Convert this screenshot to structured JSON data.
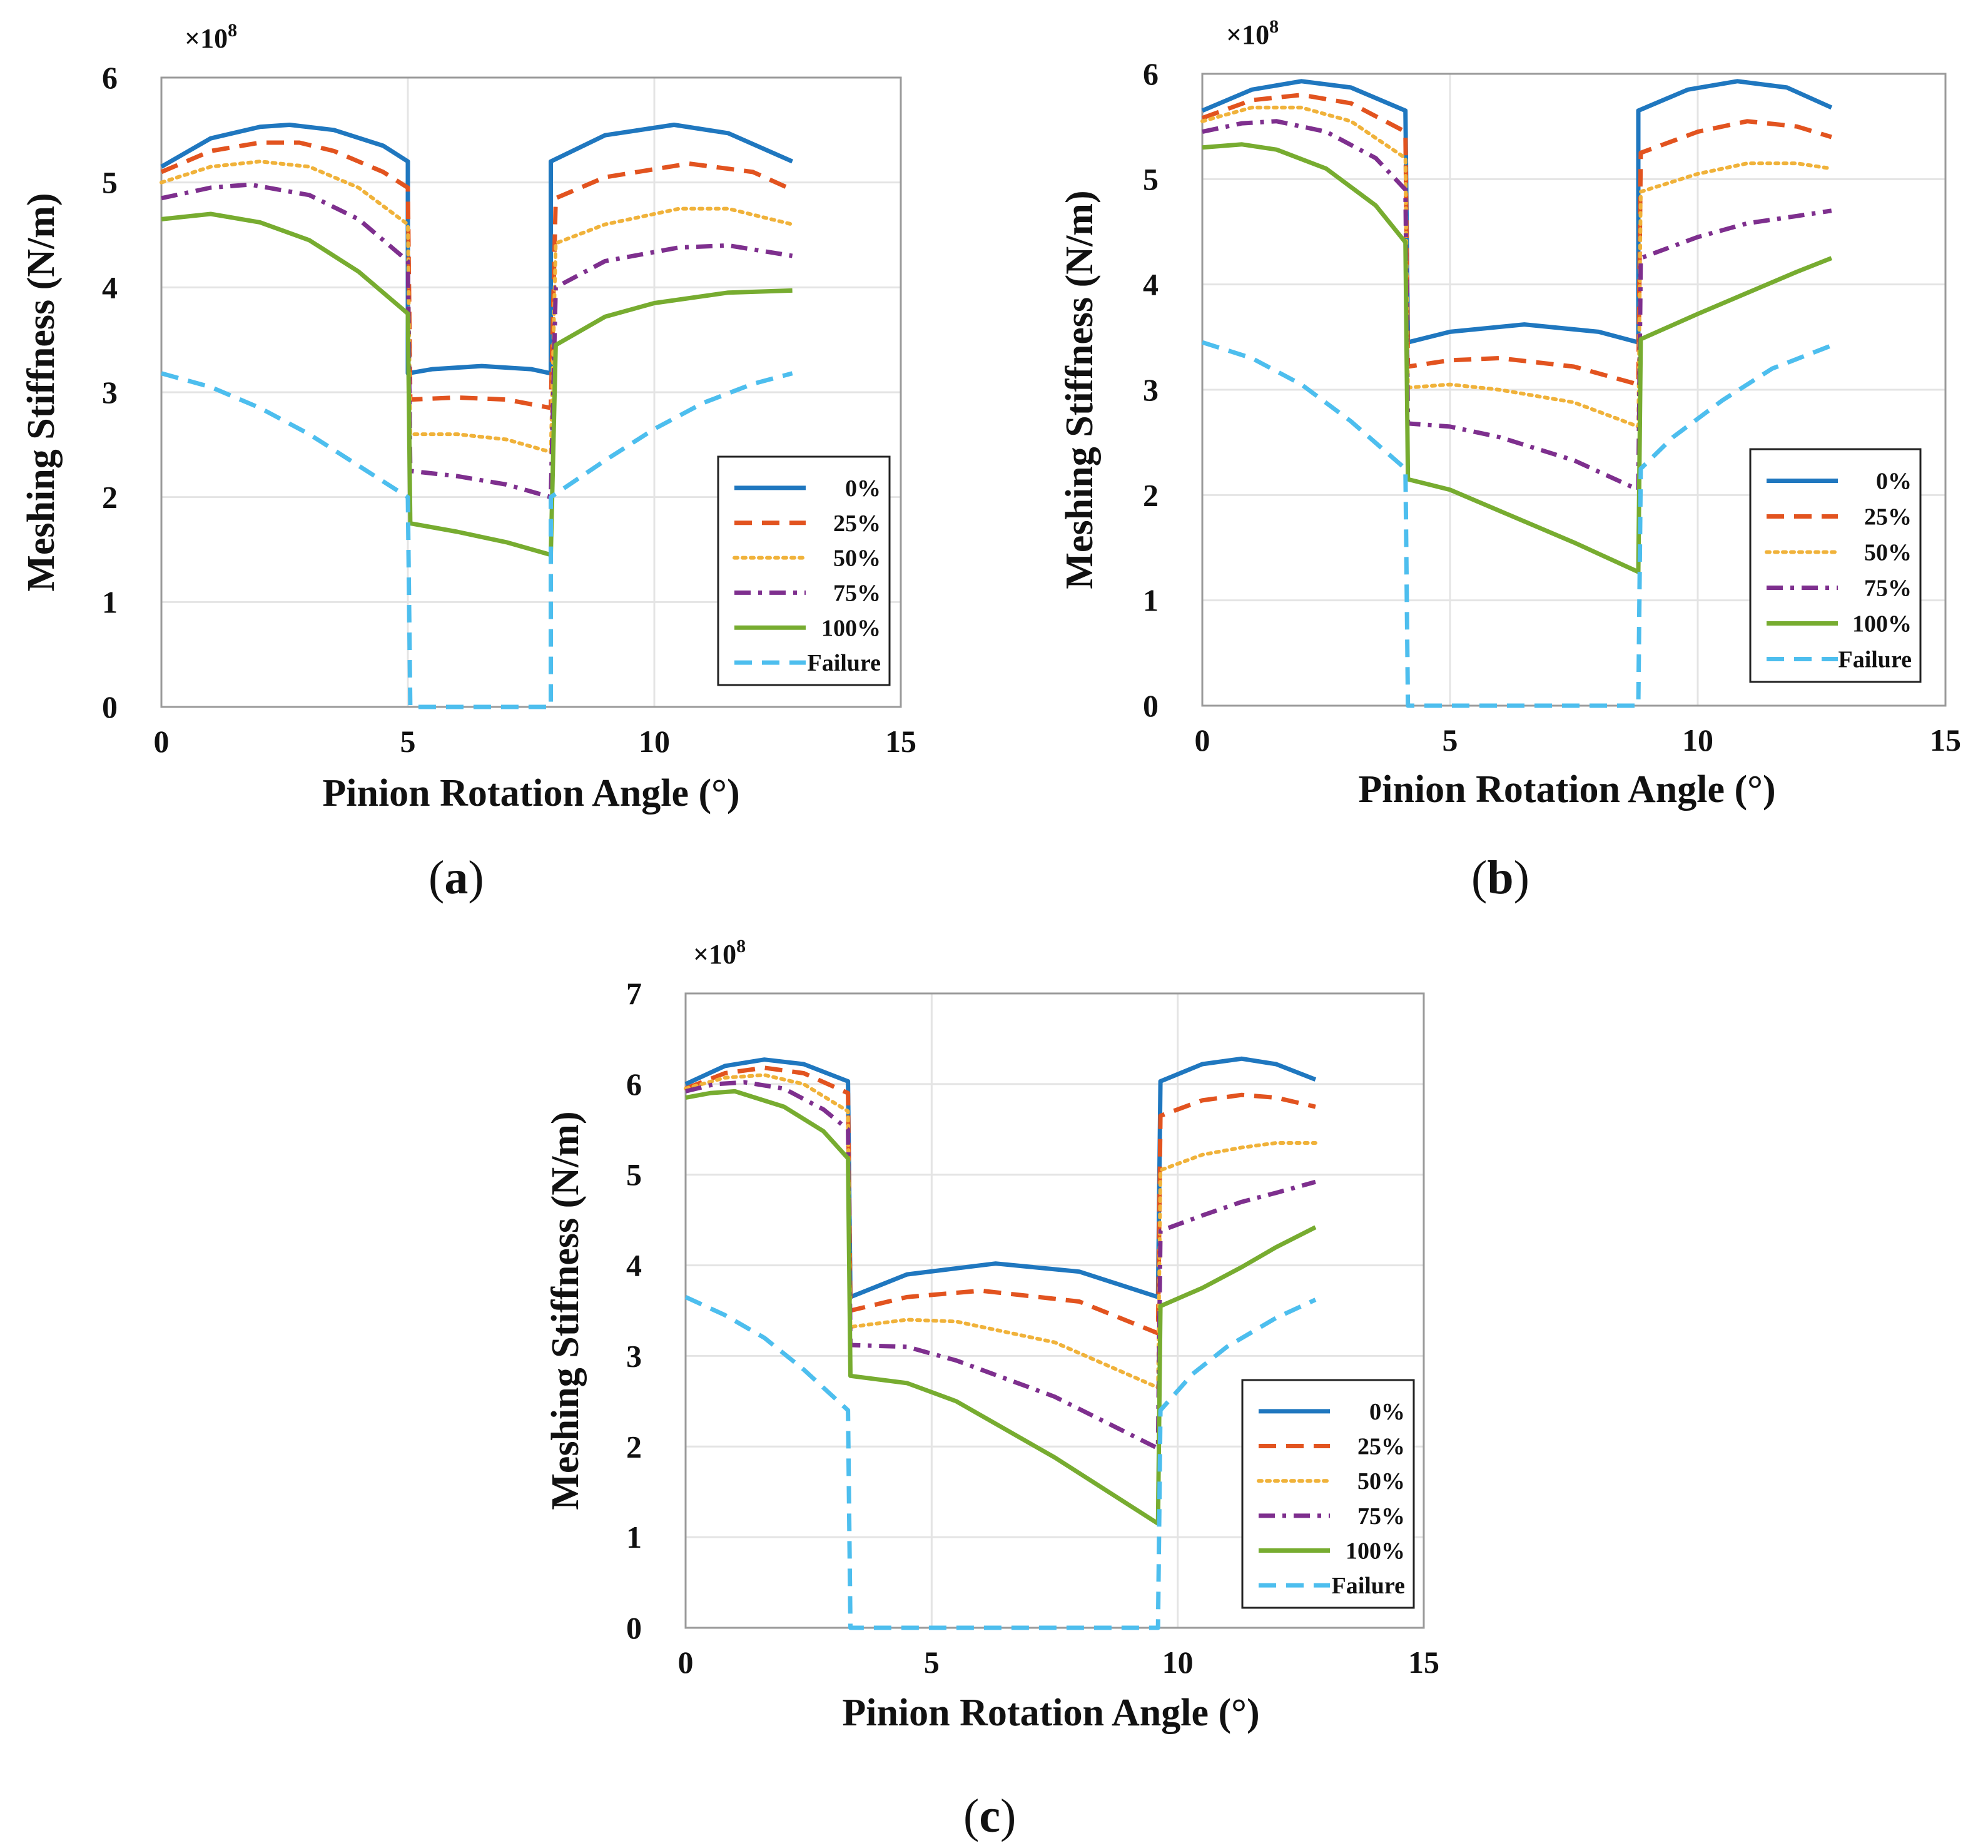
{
  "chart_data": [
    {
      "type": "line",
      "panel": "a",
      "caption": "a",
      "xlabel": "Pinion Rotation Angle (°)",
      "ylabel": "Meshing Stiffness (N/m)",
      "scale_label": "×10",
      "scale_exponent": "8",
      "xlim": [
        0,
        15
      ],
      "ylim": [
        0,
        6
      ],
      "xticks": [
        0,
        5,
        10,
        15
      ],
      "yticks": [
        0,
        1,
        2,
        3,
        4,
        5,
        6
      ],
      "legend_position": "bottom-right",
      "series": [
        {
          "name": "0%",
          "color": "#1f77bf",
          "style": "solid",
          "x": [
            0.0,
            1.0,
            2.0,
            2.6,
            3.5,
            4.5,
            5.0,
            5.0,
            5.5,
            6.5,
            7.5,
            7.9,
            7.9,
            9.0,
            10.4,
            11.5,
            12.8
          ],
          "y": [
            5.15,
            5.42,
            5.53,
            5.55,
            5.5,
            5.35,
            5.2,
            3.18,
            3.22,
            3.25,
            3.22,
            3.18,
            5.2,
            5.45,
            5.55,
            5.47,
            5.2
          ]
        },
        {
          "name": "25%",
          "color": "#e2531f",
          "style": "dashed",
          "x": [
            0.0,
            1.0,
            2.0,
            2.8,
            3.5,
            4.5,
            5.0,
            5.05,
            6.0,
            7.0,
            7.9,
            8.0,
            9.0,
            10.7,
            12.0,
            12.8
          ],
          "y": [
            5.1,
            5.3,
            5.38,
            5.38,
            5.3,
            5.1,
            4.95,
            2.93,
            2.95,
            2.93,
            2.85,
            4.85,
            5.05,
            5.18,
            5.1,
            4.93
          ]
        },
        {
          "name": "50%",
          "color": "#f0b23a",
          "style": "dotted",
          "x": [
            0.0,
            1.0,
            2.0,
            3.0,
            4.0,
            5.0,
            5.05,
            6.0,
            7.0,
            7.9,
            8.0,
            9.0,
            10.5,
            11.5,
            12.8
          ],
          "y": [
            5.0,
            5.15,
            5.2,
            5.15,
            4.95,
            4.6,
            2.6,
            2.6,
            2.55,
            2.43,
            4.42,
            4.6,
            4.75,
            4.75,
            4.6
          ]
        },
        {
          "name": "75%",
          "color": "#7e2f8e",
          "style": "dashdot",
          "x": [
            0.0,
            1.0,
            1.8,
            3.0,
            4.0,
            5.0,
            5.05,
            6.0,
            7.0,
            7.9,
            8.0,
            9.0,
            10.5,
            11.5,
            12.8
          ],
          "y": [
            4.85,
            4.95,
            4.98,
            4.88,
            4.65,
            4.25,
            2.25,
            2.2,
            2.12,
            2.0,
            4.0,
            4.25,
            4.38,
            4.4,
            4.3
          ]
        },
        {
          "name": "100%",
          "color": "#77ac30",
          "style": "solid",
          "x": [
            0.0,
            1.0,
            2.0,
            3.0,
            4.0,
            5.0,
            5.05,
            6.0,
            7.0,
            7.9,
            8.0,
            9.0,
            10.0,
            11.5,
            12.8
          ],
          "y": [
            4.65,
            4.7,
            4.62,
            4.45,
            4.15,
            3.75,
            1.75,
            1.67,
            1.57,
            1.45,
            3.45,
            3.72,
            3.85,
            3.95,
            3.97
          ]
        },
        {
          "name": "Failure",
          "color": "#4dbeee",
          "style": "dashed",
          "x": [
            0.0,
            1.0,
            2.0,
            3.0,
            4.0,
            5.0,
            5.05,
            7.9,
            7.9,
            9.0,
            10.0,
            11.0,
            12.0,
            12.8
          ],
          "y": [
            3.18,
            3.05,
            2.85,
            2.6,
            2.3,
            2.0,
            0.0,
            0.0,
            2.0,
            2.35,
            2.65,
            2.9,
            3.08,
            3.18
          ]
        }
      ]
    },
    {
      "type": "line",
      "panel": "b",
      "caption": "b",
      "xlabel": "Pinion Rotation Angle (°)",
      "ylabel": "Meshing Stiffness (N/m)",
      "scale_label": "×10",
      "scale_exponent": "8",
      "xlim": [
        0,
        15
      ],
      "ylim": [
        0,
        6
      ],
      "xticks": [
        0,
        5,
        10,
        15
      ],
      "yticks": [
        0,
        1,
        2,
        3,
        4,
        5,
        6
      ],
      "legend_position": "bottom-right",
      "series": [
        {
          "name": "0%",
          "color": "#1f77bf",
          "style": "solid",
          "x": [
            0.0,
            1.0,
            2.0,
            3.0,
            4.1,
            4.15,
            5.0,
            6.5,
            8.0,
            8.8,
            8.8,
            9.8,
            10.8,
            11.8,
            12.7
          ],
          "y": [
            5.65,
            5.85,
            5.93,
            5.87,
            5.65,
            3.45,
            3.55,
            3.62,
            3.55,
            3.45,
            5.65,
            5.85,
            5.93,
            5.87,
            5.68
          ]
        },
        {
          "name": "25%",
          "color": "#e2531f",
          "style": "dashed",
          "x": [
            0.0,
            1.0,
            2.0,
            3.0,
            4.1,
            4.15,
            5.0,
            6.0,
            7.5,
            8.8,
            8.85,
            10.0,
            11.0,
            12.0,
            12.7
          ],
          "y": [
            5.58,
            5.75,
            5.8,
            5.72,
            5.45,
            3.22,
            3.28,
            3.3,
            3.22,
            3.05,
            5.25,
            5.45,
            5.55,
            5.5,
            5.4
          ]
        },
        {
          "name": "50%",
          "color": "#f0b23a",
          "style": "dotted",
          "x": [
            0.0,
            1.0,
            2.0,
            3.0,
            4.1,
            4.15,
            5.0,
            6.0,
            7.5,
            8.8,
            8.85,
            10.0,
            11.0,
            12.0,
            12.7
          ],
          "y": [
            5.55,
            5.68,
            5.68,
            5.55,
            5.2,
            3.02,
            3.05,
            3.0,
            2.88,
            2.65,
            4.88,
            5.05,
            5.15,
            5.15,
            5.1
          ]
        },
        {
          "name": "75%",
          "color": "#7e2f8e",
          "style": "dashdot",
          "x": [
            0.0,
            0.8,
            1.5,
            2.5,
            3.5,
            4.1,
            4.15,
            5.0,
            6.0,
            7.5,
            8.8,
            8.85,
            10.0,
            11.0,
            12.0,
            12.7
          ],
          "y": [
            5.45,
            5.53,
            5.55,
            5.45,
            5.2,
            4.9,
            2.68,
            2.65,
            2.55,
            2.33,
            2.05,
            4.25,
            4.45,
            4.58,
            4.65,
            4.7
          ]
        },
        {
          "name": "100%",
          "color": "#77ac30",
          "style": "solid",
          "x": [
            0.0,
            0.8,
            1.5,
            2.5,
            3.5,
            4.1,
            4.15,
            5.0,
            6.0,
            7.5,
            8.8,
            8.85,
            10.0,
            11.0,
            12.0,
            12.7
          ],
          "y": [
            5.3,
            5.33,
            5.28,
            5.1,
            4.75,
            4.4,
            2.15,
            2.05,
            1.85,
            1.55,
            1.27,
            3.48,
            3.72,
            3.92,
            4.12,
            4.25
          ]
        },
        {
          "name": "Failure",
          "color": "#4dbeee",
          "style": "dashed",
          "x": [
            0.0,
            1.0,
            2.0,
            3.0,
            4.1,
            4.15,
            8.8,
            8.85,
            9.5,
            10.5,
            11.5,
            12.7
          ],
          "y": [
            3.45,
            3.3,
            3.05,
            2.7,
            2.25,
            0.0,
            0.0,
            2.25,
            2.55,
            2.9,
            3.2,
            3.42
          ]
        }
      ]
    },
    {
      "type": "line",
      "panel": "c",
      "caption": "c",
      "xlabel": "Pinion Rotation Angle (°)",
      "ylabel": "Meshing Stiffness (N/m)",
      "scale_label": "×10",
      "scale_exponent": "8",
      "xlim": [
        0,
        15
      ],
      "ylim": [
        0,
        7
      ],
      "xticks": [
        0,
        5,
        10,
        15
      ],
      "yticks": [
        0,
        1,
        2,
        3,
        4,
        5,
        6,
        7
      ],
      "legend_position": "bottom-right",
      "series": [
        {
          "name": "0%",
          "color": "#1f77bf",
          "style": "solid",
          "x": [
            0.0,
            0.8,
            1.6,
            2.4,
            3.3,
            3.35,
            4.5,
            6.3,
            8.0,
            9.6,
            9.65,
            10.5,
            11.3,
            12.0,
            12.8
          ],
          "y": [
            6.0,
            6.2,
            6.27,
            6.22,
            6.03,
            3.65,
            3.9,
            4.02,
            3.93,
            3.65,
            6.03,
            6.22,
            6.28,
            6.22,
            6.05
          ]
        },
        {
          "name": "25%",
          "color": "#e2531f",
          "style": "dashed",
          "x": [
            0.0,
            0.8,
            1.6,
            2.4,
            3.3,
            3.35,
            4.5,
            6.0,
            8.0,
            9.6,
            9.65,
            10.5,
            11.3,
            12.0,
            12.8
          ],
          "y": [
            5.95,
            6.12,
            6.18,
            6.12,
            5.9,
            3.5,
            3.65,
            3.72,
            3.6,
            3.25,
            5.65,
            5.82,
            5.88,
            5.85,
            5.75
          ]
        },
        {
          "name": "50%",
          "color": "#f0b23a",
          "style": "dotted",
          "x": [
            0.0,
            0.8,
            1.6,
            2.4,
            3.3,
            3.35,
            4.5,
            5.5,
            7.5,
            9.6,
            9.65,
            10.5,
            11.3,
            12.0,
            12.8
          ],
          "y": [
            5.95,
            6.07,
            6.1,
            6.0,
            5.7,
            3.32,
            3.4,
            3.38,
            3.15,
            2.65,
            5.05,
            5.22,
            5.3,
            5.35,
            5.35
          ]
        },
        {
          "name": "75%",
          "color": "#7e2f8e",
          "style": "dashdot",
          "x": [
            0.0,
            0.6,
            1.2,
            2.0,
            2.8,
            3.3,
            3.35,
            4.5,
            5.5,
            7.5,
            9.6,
            9.65,
            10.5,
            11.3,
            12.0,
            12.8
          ],
          "y": [
            5.92,
            6.0,
            6.02,
            5.95,
            5.72,
            5.5,
            3.12,
            3.1,
            2.95,
            2.55,
            1.98,
            4.38,
            4.55,
            4.7,
            4.8,
            4.92
          ]
        },
        {
          "name": "100%",
          "color": "#77ac30",
          "style": "solid",
          "x": [
            0.0,
            0.5,
            1.0,
            2.0,
            2.8,
            3.3,
            3.35,
            4.5,
            5.5,
            7.5,
            9.6,
            9.65,
            10.5,
            11.3,
            12.0,
            12.8
          ],
          "y": [
            5.85,
            5.9,
            5.92,
            5.75,
            5.48,
            5.18,
            2.78,
            2.7,
            2.5,
            1.88,
            1.15,
            3.55,
            3.75,
            3.98,
            4.2,
            4.42
          ]
        },
        {
          "name": "Failure",
          "color": "#4dbeee",
          "style": "dashed",
          "x": [
            0.0,
            0.8,
            1.6,
            2.4,
            3.3,
            3.35,
            9.6,
            9.65,
            10.3,
            11.0,
            12.0,
            12.8
          ],
          "y": [
            3.65,
            3.45,
            3.2,
            2.85,
            2.4,
            0.0,
            0.0,
            2.4,
            2.8,
            3.1,
            3.42,
            3.62
          ]
        }
      ]
    }
  ]
}
